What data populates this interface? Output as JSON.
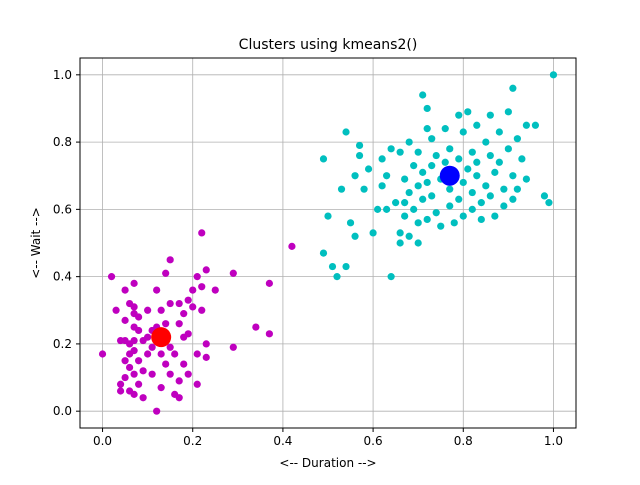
{
  "chart_data": {
    "type": "scatter",
    "title": "Clusters using kmeans2()",
    "xlabel": "<-- Duration -->",
    "ylabel": "<-- Wait -->",
    "xlim": [
      -0.05,
      1.05
    ],
    "ylim": [
      -0.05,
      1.05
    ],
    "xticks": [
      0.0,
      0.2,
      0.4,
      0.6,
      0.8,
      1.0
    ],
    "xtick_labels": [
      "0.0",
      "0.2",
      "0.4",
      "0.6",
      "0.8",
      "1.0"
    ],
    "yticks": [
      0.0,
      0.2,
      0.4,
      0.6,
      0.8,
      1.0
    ],
    "ytick_labels": [
      "0.0",
      "0.2",
      "0.4",
      "0.6",
      "0.8",
      "1.0"
    ],
    "grid": true,
    "legend": "none",
    "series": [
      {
        "color": "#bf00bf",
        "points": [
          [
            0.0,
            0.17
          ],
          [
            0.02,
            0.4
          ],
          [
            0.03,
            0.3
          ],
          [
            0.04,
            0.21
          ],
          [
            0.04,
            0.08
          ],
          [
            0.04,
            0.06
          ],
          [
            0.05,
            0.36
          ],
          [
            0.05,
            0.27
          ],
          [
            0.05,
            0.21
          ],
          [
            0.05,
            0.15
          ],
          [
            0.05,
            0.1
          ],
          [
            0.06,
            0.32
          ],
          [
            0.06,
            0.2
          ],
          [
            0.06,
            0.17
          ],
          [
            0.06,
            0.13
          ],
          [
            0.06,
            0.06
          ],
          [
            0.07,
            0.38
          ],
          [
            0.07,
            0.31
          ],
          [
            0.07,
            0.29
          ],
          [
            0.07,
            0.25
          ],
          [
            0.07,
            0.21
          ],
          [
            0.07,
            0.18
          ],
          [
            0.07,
            0.11
          ],
          [
            0.07,
            0.05
          ],
          [
            0.08,
            0.28
          ],
          [
            0.08,
            0.24
          ],
          [
            0.08,
            0.15
          ],
          [
            0.08,
            0.08
          ],
          [
            0.09,
            0.21
          ],
          [
            0.09,
            0.12
          ],
          [
            0.09,
            0.04
          ],
          [
            0.1,
            0.3
          ],
          [
            0.1,
            0.22
          ],
          [
            0.1,
            0.17
          ],
          [
            0.11,
            0.24
          ],
          [
            0.11,
            0.19
          ],
          [
            0.11,
            0.11
          ],
          [
            0.12,
            0.36
          ],
          [
            0.12,
            0.25
          ],
          [
            0.12,
            0.23
          ],
          [
            0.12,
            0.21
          ],
          [
            0.12,
            0.0
          ],
          [
            0.13,
            0.3
          ],
          [
            0.13,
            0.17
          ],
          [
            0.13,
            0.07
          ],
          [
            0.14,
            0.41
          ],
          [
            0.14,
            0.26
          ],
          [
            0.14,
            0.14
          ],
          [
            0.15,
            0.45
          ],
          [
            0.15,
            0.32
          ],
          [
            0.15,
            0.19
          ],
          [
            0.15,
            0.11
          ],
          [
            0.16,
            0.17
          ],
          [
            0.16,
            0.05
          ],
          [
            0.17,
            0.32
          ],
          [
            0.17,
            0.26
          ],
          [
            0.17,
            0.09
          ],
          [
            0.17,
            0.04
          ],
          [
            0.18,
            0.29
          ],
          [
            0.18,
            0.22
          ],
          [
            0.18,
            0.14
          ],
          [
            0.19,
            0.33
          ],
          [
            0.19,
            0.23
          ],
          [
            0.19,
            0.11
          ],
          [
            0.2,
            0.36
          ],
          [
            0.2,
            0.31
          ],
          [
            0.21,
            0.4
          ],
          [
            0.21,
            0.17
          ],
          [
            0.21,
            0.08
          ],
          [
            0.22,
            0.53
          ],
          [
            0.22,
            0.37
          ],
          [
            0.22,
            0.3
          ],
          [
            0.23,
            0.42
          ],
          [
            0.23,
            0.2
          ],
          [
            0.23,
            0.16
          ],
          [
            0.25,
            0.36
          ],
          [
            0.29,
            0.41
          ],
          [
            0.29,
            0.19
          ],
          [
            0.34,
            0.25
          ],
          [
            0.37,
            0.38
          ],
          [
            0.37,
            0.23
          ],
          [
            0.42,
            0.49
          ]
        ]
      },
      {
        "color": "#00bfbf",
        "points": [
          [
            0.49,
            0.75
          ],
          [
            0.49,
            0.47
          ],
          [
            0.5,
            0.58
          ],
          [
            0.51,
            0.43
          ],
          [
            0.52,
            0.4
          ],
          [
            0.53,
            0.66
          ],
          [
            0.54,
            0.83
          ],
          [
            0.54,
            0.43
          ],
          [
            0.55,
            0.56
          ],
          [
            0.56,
            0.52
          ],
          [
            0.56,
            0.7
          ],
          [
            0.57,
            0.79
          ],
          [
            0.57,
            0.76
          ],
          [
            0.58,
            0.66
          ],
          [
            0.59,
            0.72
          ],
          [
            0.6,
            0.53
          ],
          [
            0.61,
            0.6
          ],
          [
            0.62,
            0.75
          ],
          [
            0.62,
            0.67
          ],
          [
            0.63,
            0.7
          ],
          [
            0.63,
            0.6
          ],
          [
            0.64,
            0.78
          ],
          [
            0.64,
            0.4
          ],
          [
            0.65,
            0.62
          ],
          [
            0.66,
            0.77
          ],
          [
            0.66,
            0.53
          ],
          [
            0.66,
            0.5
          ],
          [
            0.67,
            0.62
          ],
          [
            0.67,
            0.58
          ],
          [
            0.67,
            0.69
          ],
          [
            0.68,
            0.8
          ],
          [
            0.68,
            0.65
          ],
          [
            0.68,
            0.52
          ],
          [
            0.69,
            0.73
          ],
          [
            0.69,
            0.6
          ],
          [
            0.7,
            0.77
          ],
          [
            0.7,
            0.67
          ],
          [
            0.7,
            0.56
          ],
          [
            0.7,
            0.5
          ],
          [
            0.71,
            0.94
          ],
          [
            0.71,
            0.71
          ],
          [
            0.71,
            0.63
          ],
          [
            0.72,
            0.84
          ],
          [
            0.72,
            0.9
          ],
          [
            0.72,
            0.68
          ],
          [
            0.72,
            0.57
          ],
          [
            0.73,
            0.81
          ],
          [
            0.73,
            0.73
          ],
          [
            0.73,
            0.64
          ],
          [
            0.74,
            0.76
          ],
          [
            0.74,
            0.59
          ],
          [
            0.75,
            0.69
          ],
          [
            0.75,
            0.55
          ],
          [
            0.76,
            0.84
          ],
          [
            0.76,
            0.74
          ],
          [
            0.77,
            0.78
          ],
          [
            0.77,
            0.66
          ],
          [
            0.77,
            0.61
          ],
          [
            0.78,
            0.71
          ],
          [
            0.78,
            0.56
          ],
          [
            0.79,
            0.88
          ],
          [
            0.79,
            0.75
          ],
          [
            0.79,
            0.63
          ],
          [
            0.8,
            0.83
          ],
          [
            0.8,
            0.68
          ],
          [
            0.8,
            0.58
          ],
          [
            0.81,
            0.72
          ],
          [
            0.81,
            0.89
          ],
          [
            0.82,
            0.77
          ],
          [
            0.82,
            0.65
          ],
          [
            0.82,
            0.6
          ],
          [
            0.83,
            0.85
          ],
          [
            0.83,
            0.74
          ],
          [
            0.83,
            0.7
          ],
          [
            0.84,
            0.62
          ],
          [
            0.84,
            0.57
          ],
          [
            0.85,
            0.8
          ],
          [
            0.85,
            0.67
          ],
          [
            0.86,
            0.88
          ],
          [
            0.86,
            0.76
          ],
          [
            0.86,
            0.64
          ],
          [
            0.87,
            0.71
          ],
          [
            0.87,
            0.58
          ],
          [
            0.88,
            0.83
          ],
          [
            0.88,
            0.74
          ],
          [
            0.89,
            0.66
          ],
          [
            0.89,
            0.61
          ],
          [
            0.9,
            0.89
          ],
          [
            0.9,
            0.78
          ],
          [
            0.91,
            0.96
          ],
          [
            0.91,
            0.7
          ],
          [
            0.91,
            0.63
          ],
          [
            0.92,
            0.81
          ],
          [
            0.92,
            0.66
          ],
          [
            0.93,
            0.75
          ],
          [
            0.94,
            0.85
          ],
          [
            0.94,
            0.69
          ],
          [
            0.96,
            0.85
          ],
          [
            0.98,
            0.64
          ],
          [
            0.99,
            0.62
          ],
          [
            1.0,
            1.0
          ]
        ]
      }
    ],
    "centroids": [
      {
        "color": "#ff0000",
        "x": 0.13,
        "y": 0.22
      },
      {
        "color": "#0000ff",
        "x": 0.77,
        "y": 0.7
      }
    ]
  },
  "style": {
    "grid_color": "#b0b0b0",
    "axis_color": "#000000"
  }
}
